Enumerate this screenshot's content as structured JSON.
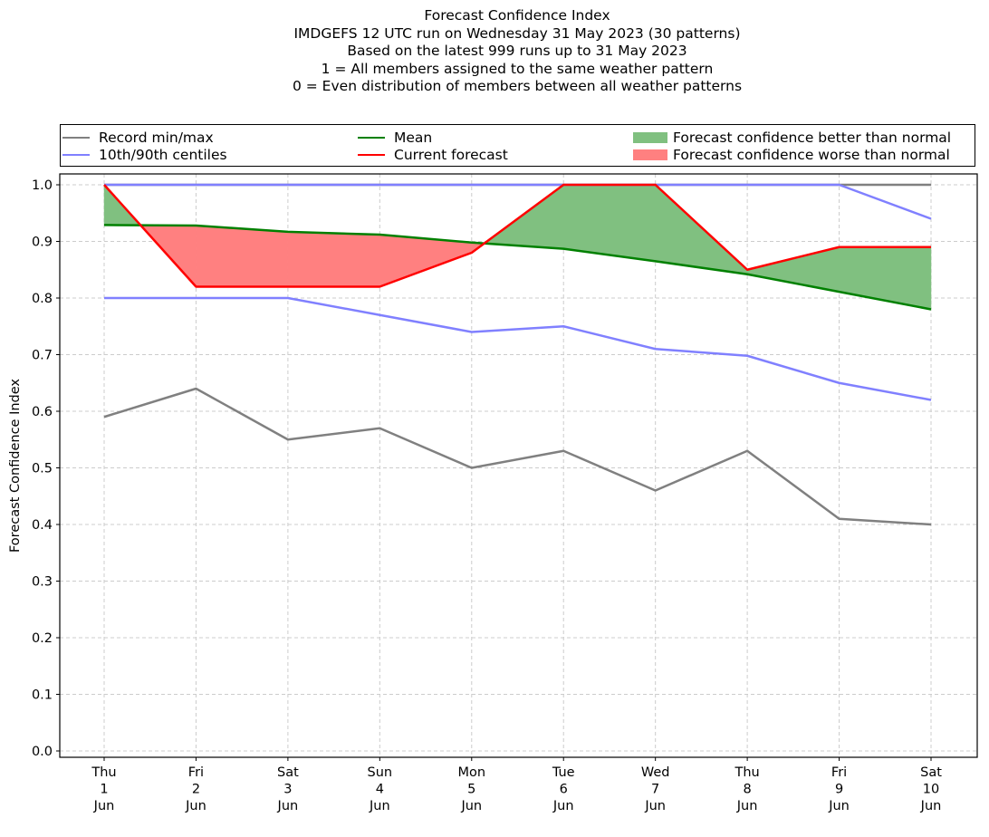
{
  "chart_data": {
    "type": "line",
    "title_lines": [
      "Forecast Confidence Index",
      "IMDGEFS 12 UTC run on Wednesday 31 May 2023 (30 patterns)",
      "Based on the latest 999 runs up to 31 May 2023",
      "1 = All members assigned to the same weather pattern",
      "0 = Even distribution of members between all weather patterns"
    ],
    "ylabel": "Forecast Confidence Index",
    "xlabel": "",
    "ylim": [
      0.0,
      1.0
    ],
    "yticks": [
      "0.0",
      "0.1",
      "0.2",
      "0.3",
      "0.4",
      "0.5",
      "0.6",
      "0.7",
      "0.8",
      "0.9",
      "1.0"
    ],
    "categories": [
      [
        "Thu",
        "1",
        "Jun"
      ],
      [
        "Fri",
        "2",
        "Jun"
      ],
      [
        "Sat",
        "3",
        "Jun"
      ],
      [
        "Sun",
        "4",
        "Jun"
      ],
      [
        "Mon",
        "5",
        "Jun"
      ],
      [
        "Tue",
        "6",
        "Jun"
      ],
      [
        "Wed",
        "7",
        "Jun"
      ],
      [
        "Thu",
        "8",
        "Jun"
      ],
      [
        "Fri",
        "9",
        "Jun"
      ],
      [
        "Sat",
        "10",
        "Jun"
      ]
    ],
    "grid": true,
    "legend_placement": "top",
    "legend": [
      {
        "label": "Record min/max",
        "kind": "line",
        "color": "#808080"
      },
      {
        "label": "10th/90th centiles",
        "kind": "line",
        "color": "#8080ff"
      },
      {
        "label": "Mean",
        "kind": "line",
        "color": "#008000"
      },
      {
        "label": "Current forecast",
        "kind": "line",
        "color": "#ff0000"
      },
      {
        "label": "Forecast confidence better than normal",
        "kind": "patch",
        "color": "#80c080"
      },
      {
        "label": "Forecast confidence worse than normal",
        "kind": "patch",
        "color": "#ff8080"
      }
    ],
    "series": [
      {
        "name": "Record min",
        "color": "#808080",
        "values": [
          0.59,
          0.64,
          0.55,
          0.57,
          0.5,
          0.53,
          0.46,
          0.53,
          0.41,
          0.4
        ]
      },
      {
        "name": "Record max",
        "color": "#808080",
        "values": [
          1.0,
          1.0,
          1.0,
          1.0,
          1.0,
          1.0,
          1.0,
          1.0,
          1.0,
          1.0
        ]
      },
      {
        "name": "10th centile",
        "color": "#8080ff",
        "values": [
          0.8,
          0.8,
          0.8,
          0.77,
          0.74,
          0.75,
          0.71,
          0.698,
          0.65,
          0.62
        ]
      },
      {
        "name": "90th centile",
        "color": "#8080ff",
        "values": [
          1.0,
          1.0,
          1.0,
          1.0,
          1.0,
          1.0,
          1.0,
          1.0,
          1.0,
          0.94
        ]
      },
      {
        "name": "Mean",
        "color": "#008000",
        "values": [
          0.929,
          0.928,
          0.917,
          0.912,
          0.898,
          0.887,
          0.865,
          0.842,
          0.811,
          0.78
        ]
      },
      {
        "name": "Current forecast",
        "color": "#ff0000",
        "values": [
          1.0,
          0.82,
          0.82,
          0.82,
          0.88,
          1.0,
          1.0,
          0.85,
          0.89,
          0.89
        ]
      }
    ],
    "fill_colors": {
      "better": "#80c080",
      "worse": "#ff8080"
    }
  }
}
